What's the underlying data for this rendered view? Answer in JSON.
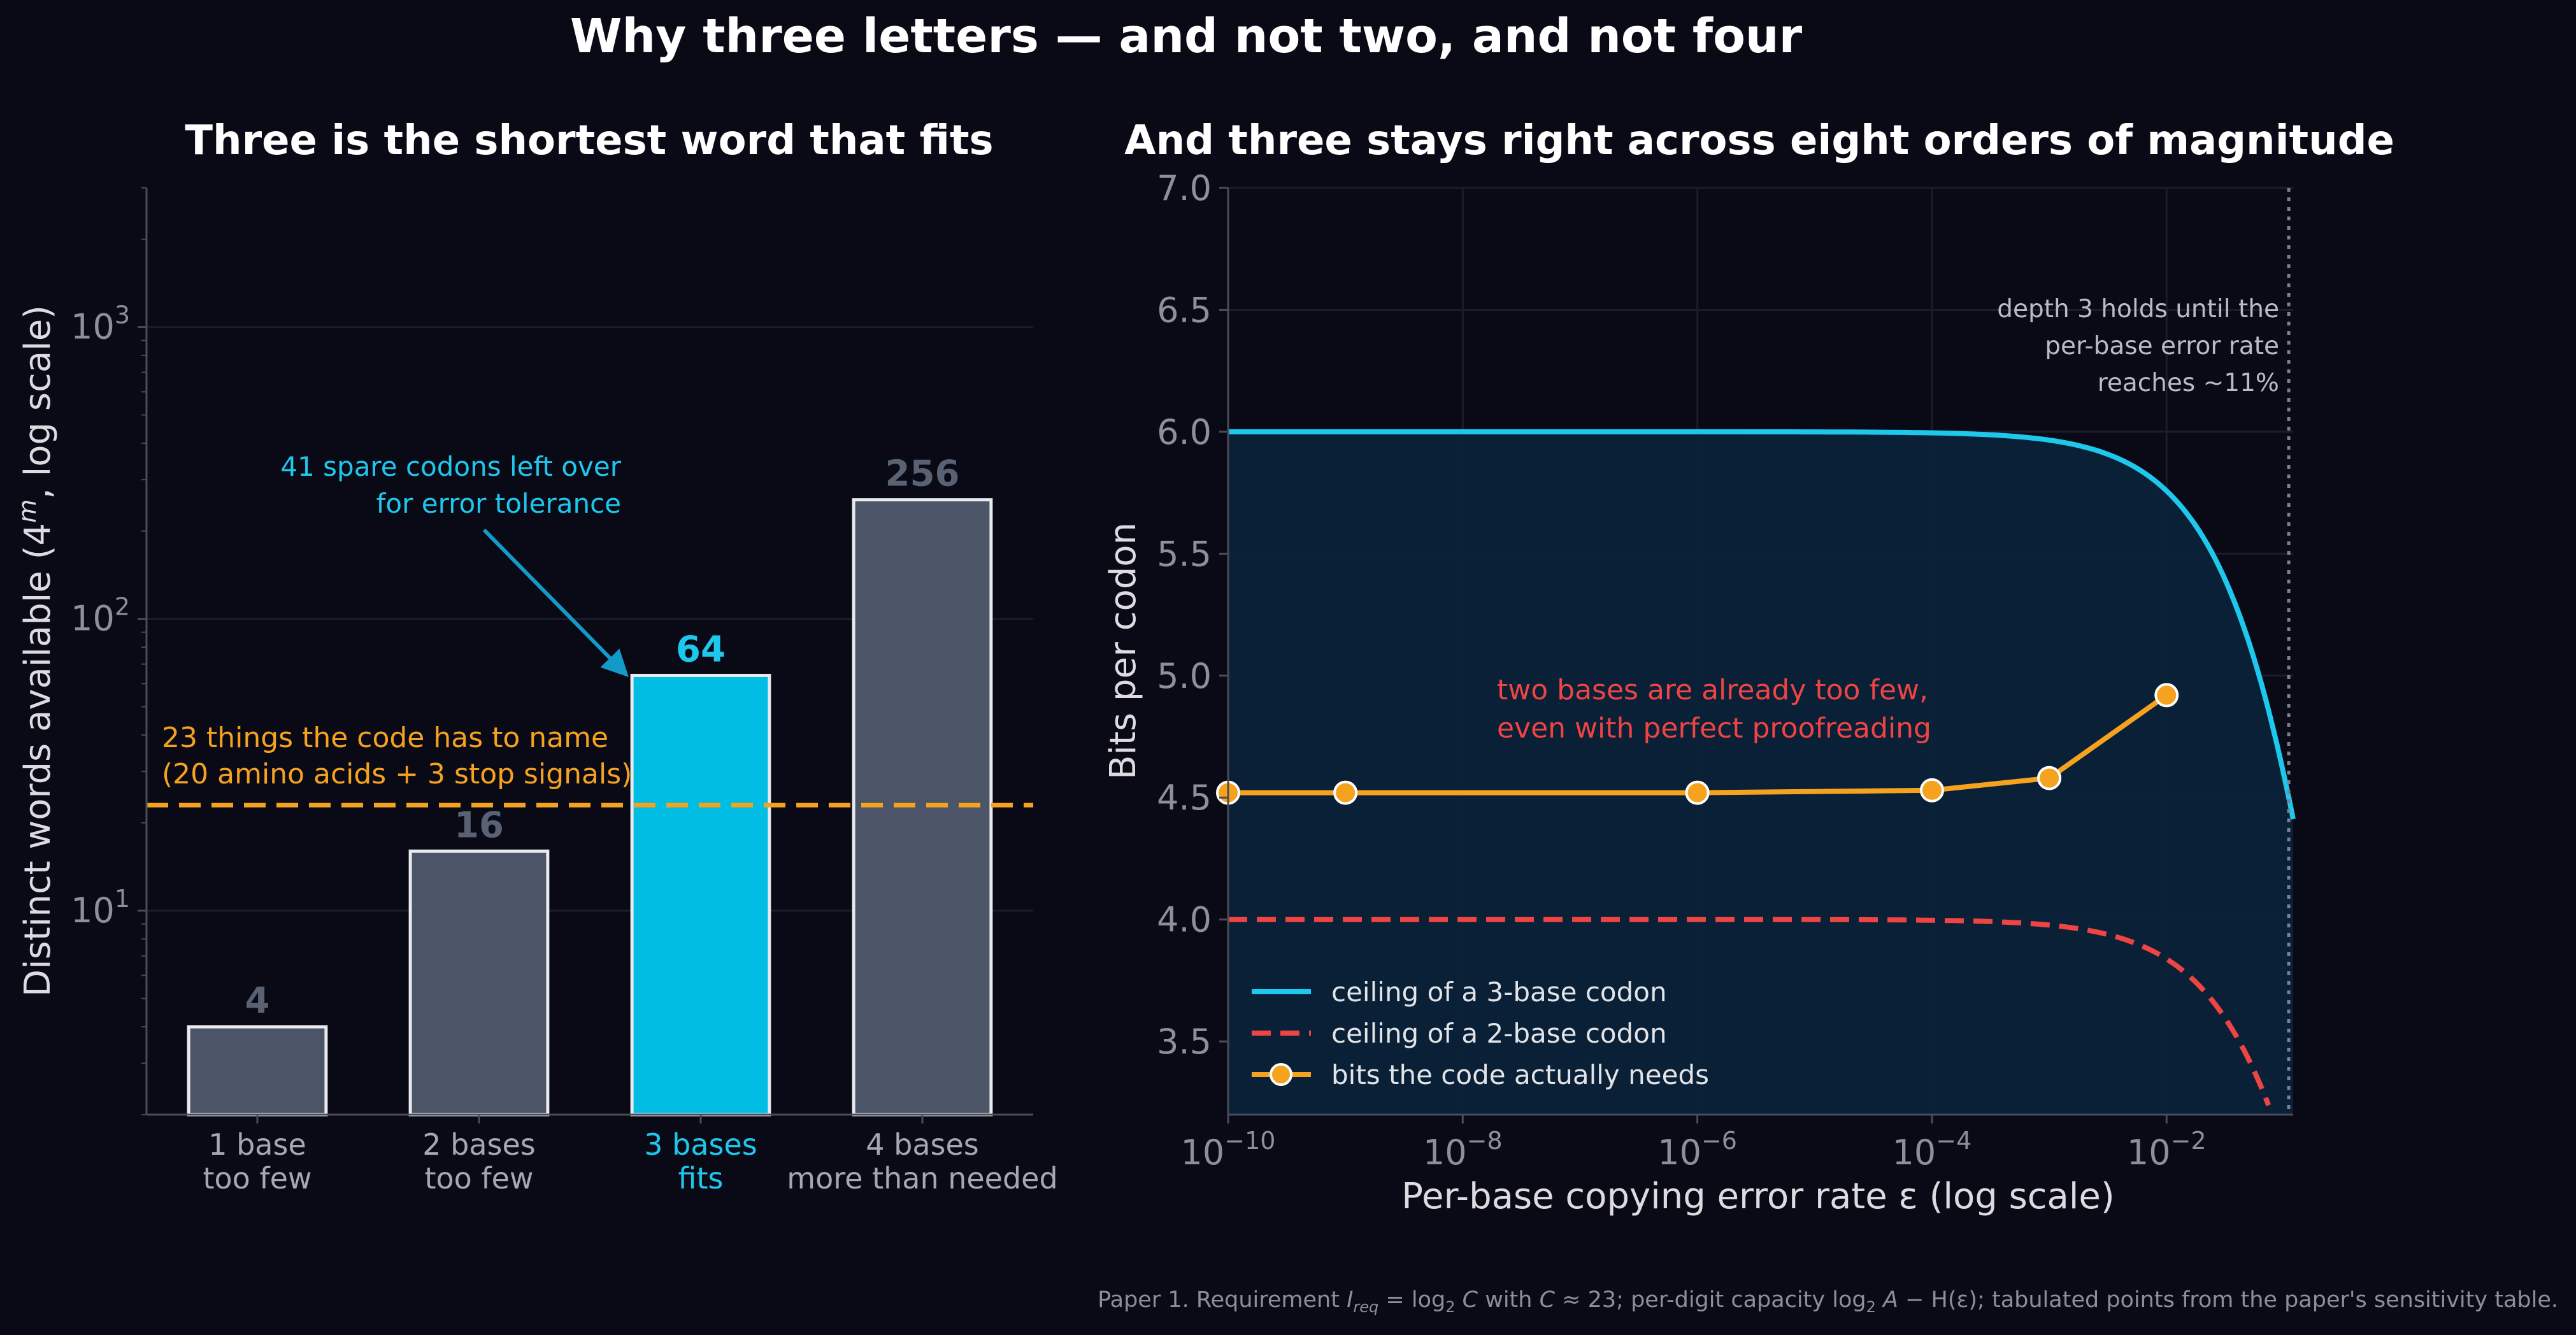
{
  "figure": {
    "suptitle": "Why three letters — and not two, and not four",
    "footnote": {
      "prefix": "Paper 1. Requirement ",
      "req_sym": "I",
      "req_sub": "req",
      "eq1": " = log",
      "log_sub": "2",
      "c_sym": " C",
      "with_word": " with ",
      "c_sym2": "C",
      "approx": " ≈ 23; per-digit capacity log",
      "log_sub2": "2",
      "a_sym": " A",
      "h_part": " − H(ε); tabulated points from the paper's sensitivity table."
    }
  },
  "chart_data": [
    {
      "type": "bar",
      "title": "Three is the shortest word that fits",
      "ylabel": {
        "prefix": "Distinct words available  (4",
        "sup": "m",
        "suffix": ", log scale)"
      },
      "yscale": "log",
      "ylim": [
        2,
        3000
      ],
      "yticks": [
        {
          "value": 10,
          "base": "10",
          "exp": "1"
        },
        {
          "value": 100,
          "base": "10",
          "exp": "2"
        },
        {
          "value": 1000,
          "base": "10",
          "exp": "3"
        }
      ],
      "categories": [
        {
          "line1": "1 base",
          "line2": "too few"
        },
        {
          "line1": "2 bases",
          "line2": "too few"
        },
        {
          "line1": "3 bases",
          "line2": "fits"
        },
        {
          "line1": "4 bases",
          "line2": "more than needed"
        }
      ],
      "values": [
        4,
        16,
        64,
        256
      ],
      "value_labels": [
        "4",
        "16",
        "64",
        "256"
      ],
      "highlight_index": 2,
      "colors": {
        "bar": "#4b5567",
        "highlight": "#00bde3",
        "edge": "#e9eaee",
        "threshold": "#f5a21f"
      },
      "threshold": {
        "value": 23,
        "label_line1": "23 things the code has to name",
        "label_line2": "(20 amino acids + 3 stop signals)"
      },
      "annotation": {
        "line1": "41 spare codons left over",
        "line2": "for error tolerance"
      },
      "grid": true
    },
    {
      "type": "line",
      "title": "And three stays right across eight orders of magnitude",
      "xlabel": "Per-base copying error rate  ε  (log scale)",
      "ylabel": "Bits per codon",
      "xscale": "log",
      "xlim": [
        1e-10,
        0.12
      ],
      "ylim": [
        3.2,
        7.0
      ],
      "yticks": [
        "3.5",
        "4.0",
        "4.5",
        "5.0",
        "5.5",
        "6.0",
        "6.5",
        "7.0"
      ],
      "xticks": [
        {
          "value": 1e-10,
          "base": "10",
          "exp": "−10"
        },
        {
          "value": 1e-08,
          "base": "10",
          "exp": "−8"
        },
        {
          "value": 1e-06,
          "base": "10",
          "exp": "−6"
        },
        {
          "value": 0.0001,
          "base": "10",
          "exp": "−4"
        },
        {
          "value": 0.01,
          "base": "10",
          "exp": "−2"
        }
      ],
      "series": [
        {
          "name": "ceiling of a 3-base codon",
          "formula": "3*(2 - H(eps))",
          "style": "solid",
          "color": "#1ec8ec"
        },
        {
          "name": "ceiling of a 2-base codon",
          "formula": "2*(2 - H(eps))",
          "style": "dashed",
          "color": "#ef4444"
        },
        {
          "name": "bits the code actually needs",
          "style": "line-markers",
          "color": "#f5a21f",
          "points": [
            [
              1e-10,
              4.52
            ],
            [
              1e-09,
              4.52
            ],
            [
              1e-06,
              4.52
            ],
            [
              0.0001,
              4.53
            ],
            [
              0.001,
              4.58
            ],
            [
              0.01,
              4.92
            ]
          ]
        }
      ],
      "vline": {
        "x": 0.11,
        "label_line1": "depth 3 holds until the",
        "label_line2": "per-base error rate",
        "label_line3": "reaches ~11%"
      },
      "annotation": {
        "line1": "two bases are already too few,",
        "line2": "even with perfect proofreading"
      },
      "legend_position": "lower-left",
      "grid": true
    }
  ]
}
